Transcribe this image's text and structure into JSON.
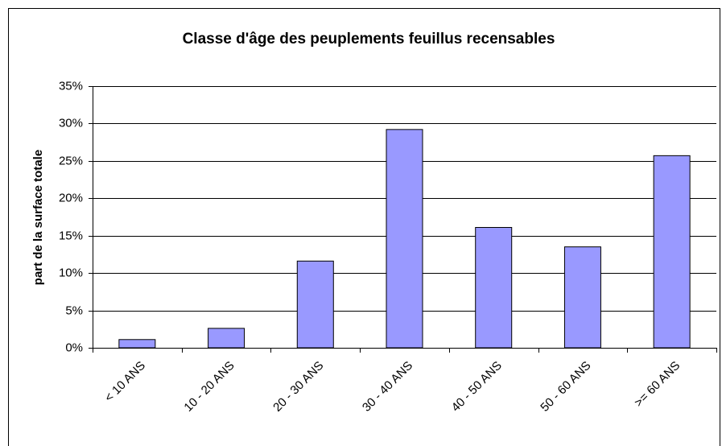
{
  "chart_data": {
    "type": "bar",
    "title": "Classe d'âge des peuplements feuillus recensables",
    "ylabel": "part de la surface totale",
    "categories": [
      "< 10 ANS",
      "10 - 20 ANS",
      "20 - 30 ANS",
      "30 - 40 ANS",
      "40 - 50 ANS",
      "50 - 60 ANS",
      ">= 60 ANS"
    ],
    "values": [
      1.1,
      2.6,
      11.6,
      29.2,
      16.1,
      13.5,
      25.7
    ],
    "color": "#9999ff",
    "ylim": [
      0,
      35
    ],
    "yticks": [
      {
        "value": 0,
        "label": "0%"
      },
      {
        "value": 5,
        "label": "5%"
      },
      {
        "value": 10,
        "label": "10%"
      },
      {
        "value": 15,
        "label": "15%"
      },
      {
        "value": 20,
        "label": "20%"
      },
      {
        "value": 25,
        "label": "25%"
      },
      {
        "value": 30,
        "label": "30%"
      },
      {
        "value": 35,
        "label": "35%"
      }
    ],
    "grid": true
  }
}
